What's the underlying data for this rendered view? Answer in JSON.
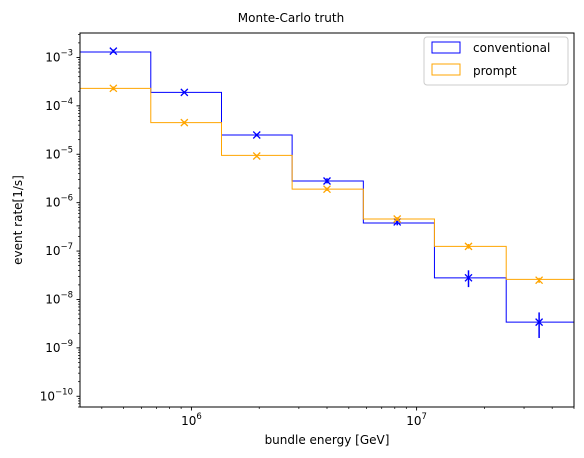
{
  "chart_data": {
    "type": "line",
    "style": "step-histogram with error-bar markers",
    "title": "Monte-Carlo truth",
    "xlabel": "bundle energy [GeV]",
    "ylabel": "event rate[1/s]",
    "xscale": "log",
    "yscale": "log",
    "xlim": [
      320000,
      50000000
    ],
    "ylim": [
      6e-11,
      0.0032
    ],
    "grid": false,
    "legend_position": "top-right",
    "x_ticks": [
      {
        "value": 1000000,
        "base": "10",
        "exp": "6"
      },
      {
        "value": 10000000,
        "base": "10",
        "exp": "7"
      }
    ],
    "y_ticks": [
      {
        "value": 0.001,
        "base": "10",
        "exp": "−3"
      },
      {
        "value": 0.0001,
        "base": "10",
        "exp": "−4"
      },
      {
        "value": 1e-05,
        "base": "10",
        "exp": "−5"
      },
      {
        "value": 1e-06,
        "base": "10",
        "exp": "−6"
      },
      {
        "value": 1e-07,
        "base": "10",
        "exp": "−7"
      },
      {
        "value": 1e-08,
        "base": "10",
        "exp": "−8"
      },
      {
        "value": 1e-09,
        "base": "10",
        "exp": "−9"
      },
      {
        "value": 1e-10,
        "base": "10",
        "exp": "−10"
      }
    ],
    "bin_edges": [
      320000,
      660000,
      1360000,
      2800000,
      5800000,
      12000000,
      25000000,
      50000000
    ],
    "series": [
      {
        "name": "conventional",
        "color": "#0000ff",
        "values": [
          0.0013,
          0.00019,
          2.5e-05,
          2.8e-06,
          3.8e-07,
          2.8e-08,
          3.4e-09
        ],
        "markers": [
          {
            "x": 450000,
            "y": 0.00135,
            "err_lo": 0.00125,
            "err_hi": 0.00145
          },
          {
            "x": 930000,
            "y": 0.00019,
            "err_lo": 0.00018,
            "err_hi": 0.0002
          },
          {
            "x": 1950000,
            "y": 2.5e-05,
            "err_lo": 2.35e-05,
            "err_hi": 2.65e-05
          },
          {
            "x": 4000000,
            "y": 2.8e-06,
            "err_lo": 2.5e-06,
            "err_hi": 3.2e-06
          },
          {
            "x": 8200000,
            "y": 4e-07,
            "err_lo": 3.4e-07,
            "err_hi": 4.7e-07
          },
          {
            "x": 17000000,
            "y": 2.8e-08,
            "err_lo": 1.8e-08,
            "err_hi": 4e-08
          },
          {
            "x": 35000000,
            "y": 3.4e-09,
            "err_lo": 1.6e-09,
            "err_hi": 5.4e-09
          }
        ]
      },
      {
        "name": "prompt",
        "color": "#ffa500",
        "values": [
          0.00023,
          4.5e-05,
          9.5e-06,
          1.9e-06,
          4.6e-07,
          1.25e-07,
          2.6e-08
        ],
        "markers": [
          {
            "x": 450000,
            "y": 0.00023,
            "err_lo": 0.00021,
            "err_hi": 0.00025
          },
          {
            "x": 930000,
            "y": 4.5e-05,
            "err_lo": 4.2e-05,
            "err_hi": 4.8e-05
          },
          {
            "x": 1950000,
            "y": 9.2e-06,
            "err_lo": 8.6e-06,
            "err_hi": 9.8e-06
          },
          {
            "x": 4000000,
            "y": 1.9e-06,
            "err_lo": 1.75e-06,
            "err_hi": 2.05e-06
          },
          {
            "x": 8200000,
            "y": 4.6e-07,
            "err_lo": 4.2e-07,
            "err_hi": 5e-07
          },
          {
            "x": 17000000,
            "y": 1.25e-07,
            "err_lo": 1.12e-07,
            "err_hi": 1.4e-07
          },
          {
            "x": 35000000,
            "y": 2.5e-08,
            "err_lo": 2.2e-08,
            "err_hi": 2.8e-08
          }
        ]
      }
    ]
  }
}
